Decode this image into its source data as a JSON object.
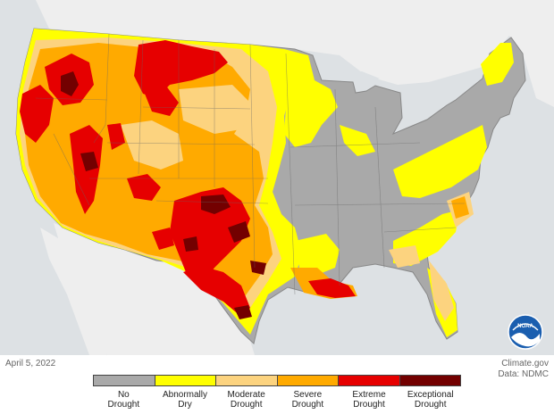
{
  "caption": {
    "date": "April 5, 2022",
    "source_site": "Climate.gov",
    "data_source": "Data: NDMC"
  },
  "legend": [
    {
      "line1": "No",
      "line2": "Drought",
      "color": "#a9a9a9"
    },
    {
      "line1": "Abnormally",
      "line2": "Dry",
      "color": "#ffff00"
    },
    {
      "line1": "Moderate",
      "line2": "Drought",
      "color": "#fcd37f"
    },
    {
      "line1": "Severe",
      "line2": "Drought",
      "color": "#ffaa00"
    },
    {
      "line1": "Extreme",
      "line2": "Drought",
      "color": "#e60000"
    },
    {
      "line1": "Exceptional",
      "line2": "Drought",
      "color": "#730000"
    }
  ],
  "map": {
    "background_color": "#dde1e4",
    "land_outside_color": "#eeeeee",
    "water_color": "#dde1e4"
  },
  "logo": {
    "name": "NOAA"
  }
}
